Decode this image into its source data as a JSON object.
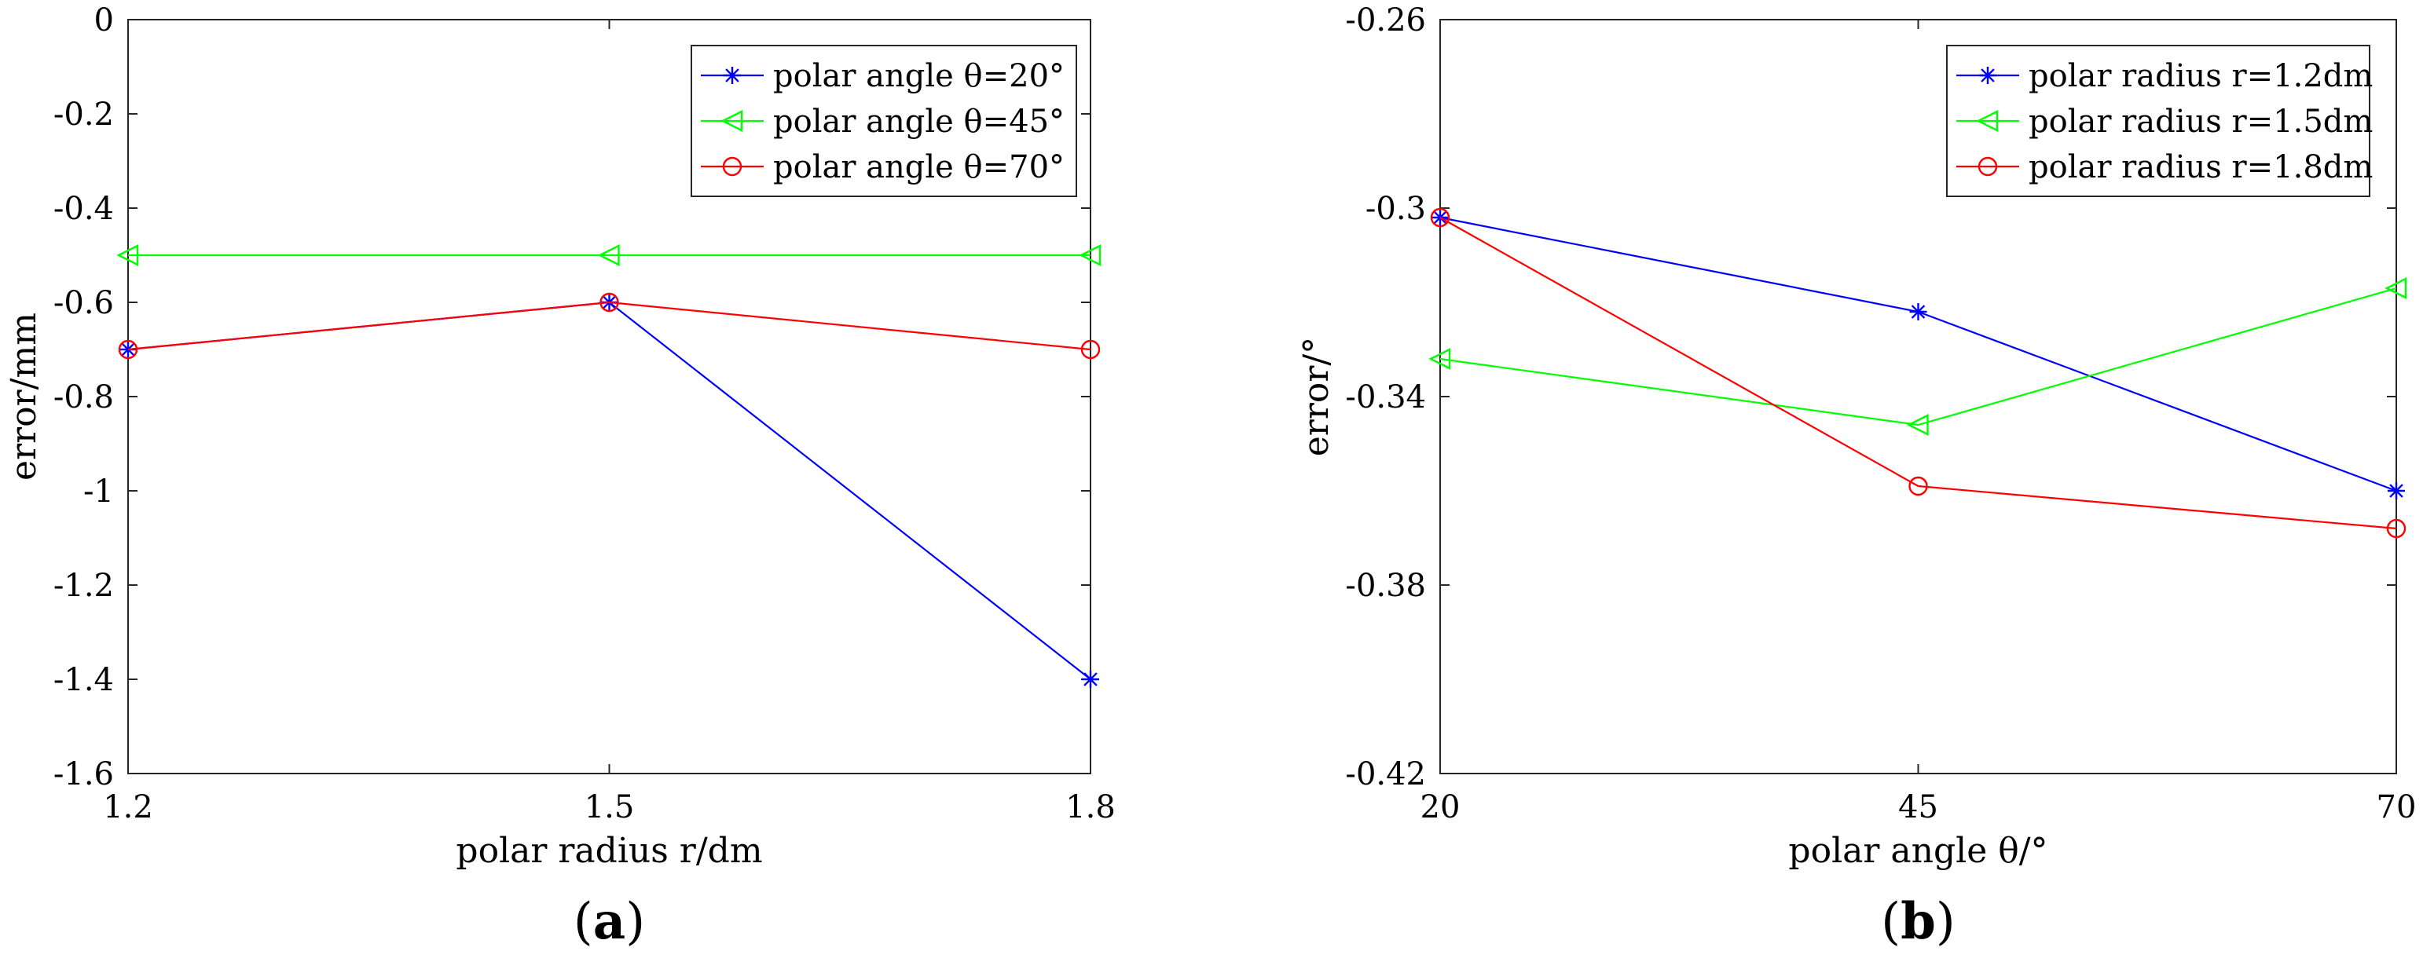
{
  "chart_data": [
    {
      "type": "line",
      "panel_label": "a",
      "xlabel": "polar radius r/dm",
      "ylabel": "error/mm",
      "x": [
        1.2,
        1.5,
        1.8
      ],
      "x_tick_labels": [
        "1.2",
        "1.5",
        "1.8"
      ],
      "xlim": [
        1.2,
        1.8
      ],
      "ylim": [
        -1.6,
        0
      ],
      "y_ticks": [
        0,
        -0.2,
        -0.4,
        -0.6,
        -0.8,
        -1,
        -1.2,
        -1.4,
        -1.6
      ],
      "y_tick_labels": [
        "0",
        "-0.2",
        "-0.4",
        "-0.6",
        "-0.8",
        "-1",
        "-1.2",
        "-1.4",
        "-1.6"
      ],
      "grid": false,
      "legend_position": "top-right",
      "series": [
        {
          "name": "polar angle θ=20°",
          "values": [
            -0.7,
            -0.6,
            -1.4
          ],
          "color": "#0000ff",
          "marker": "asterisk"
        },
        {
          "name": "polar angle θ=45°",
          "values": [
            -0.5,
            -0.5,
            -0.5
          ],
          "color": "#00ff00",
          "marker": "triangle-left"
        },
        {
          "name": "polar angle θ=70°",
          "values": [
            -0.7,
            -0.6,
            -0.7
          ],
          "color": "#ff0000",
          "marker": "circle"
        }
      ]
    },
    {
      "type": "line",
      "panel_label": "b",
      "xlabel": "polar angle θ/°",
      "ylabel": "error/°",
      "x": [
        20,
        45,
        70
      ],
      "x_tick_labels": [
        "20",
        "45",
        "70"
      ],
      "xlim": [
        20,
        70
      ],
      "ylim": [
        -0.42,
        -0.26
      ],
      "y_ticks": [
        -0.26,
        -0.3,
        -0.34,
        -0.38,
        -0.42
      ],
      "y_tick_labels": [
        "-0.26",
        "-0.3",
        "-0.34",
        "-0.38",
        "-0.42"
      ],
      "grid": false,
      "legend_position": "top-right",
      "series": [
        {
          "name": "polar radius r=1.2dm",
          "values": [
            -0.302,
            -0.322,
            -0.36
          ],
          "color": "#0000ff",
          "marker": "asterisk"
        },
        {
          "name": "polar radius r=1.5dm",
          "values": [
            -0.332,
            -0.346,
            -0.317
          ],
          "color": "#00ff00",
          "marker": "triangle-left"
        },
        {
          "name": "polar radius r=1.8dm",
          "values": [
            -0.302,
            -0.359,
            -0.368
          ],
          "color": "#ff0000",
          "marker": "circle"
        }
      ]
    }
  ]
}
